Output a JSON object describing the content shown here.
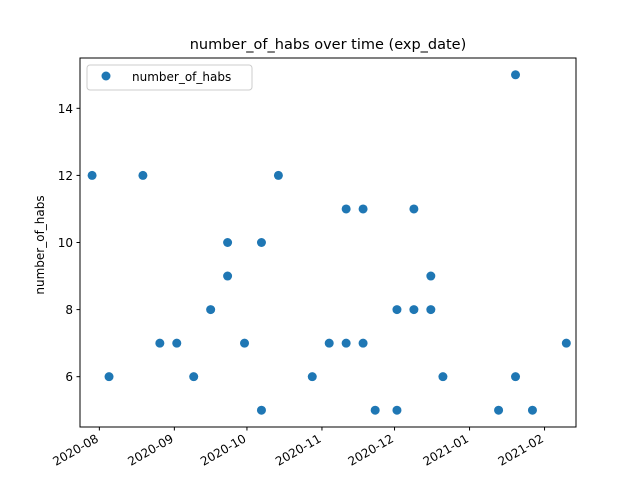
{
  "chart_data": {
    "type": "scatter",
    "title": "number_of_habs over time (exp_date)",
    "xlabel": "",
    "ylabel": "number_of_habs",
    "xlim": [
      "2020-07-24",
      "2021-02-14"
    ],
    "ylim": [
      4.5,
      15.5
    ],
    "x_ticks": [
      "2020-08",
      "2020-09",
      "2020-10",
      "2020-11",
      "2020-12",
      "2021-01",
      "2021-02"
    ],
    "y_ticks": [
      6,
      8,
      10,
      12,
      14
    ],
    "grid": false,
    "legend": {
      "position": "top-left",
      "entries": [
        "number_of_habs"
      ]
    },
    "color": "#1f77b4",
    "series": [
      {
        "name": "number_of_habs",
        "points": [
          {
            "x": "2020-07-29",
            "y": 12
          },
          {
            "x": "2020-08-05",
            "y": 6
          },
          {
            "x": "2020-08-19",
            "y": 12
          },
          {
            "x": "2020-08-26",
            "y": 7
          },
          {
            "x": "2020-09-02",
            "y": 7
          },
          {
            "x": "2020-09-09",
            "y": 6
          },
          {
            "x": "2020-09-16",
            "y": 8
          },
          {
            "x": "2020-09-23",
            "y": 10
          },
          {
            "x": "2020-09-23",
            "y": 9
          },
          {
            "x": "2020-09-30",
            "y": 7
          },
          {
            "x": "2020-10-07",
            "y": 10
          },
          {
            "x": "2020-10-07",
            "y": 5
          },
          {
            "x": "2020-10-14",
            "y": 12
          },
          {
            "x": "2020-10-28",
            "y": 6
          },
          {
            "x": "2020-11-04",
            "y": 7
          },
          {
            "x": "2020-11-11",
            "y": 11
          },
          {
            "x": "2020-11-11",
            "y": 7
          },
          {
            "x": "2020-11-18",
            "y": 11
          },
          {
            "x": "2020-11-18",
            "y": 7
          },
          {
            "x": "2020-11-23",
            "y": 5
          },
          {
            "x": "2020-12-02",
            "y": 8
          },
          {
            "x": "2020-12-02",
            "y": 5
          },
          {
            "x": "2020-12-09",
            "y": 11
          },
          {
            "x": "2020-12-09",
            "y": 8
          },
          {
            "x": "2020-12-16",
            "y": 9
          },
          {
            "x": "2020-12-16",
            "y": 8
          },
          {
            "x": "2020-12-21",
            "y": 6
          },
          {
            "x": "2021-01-13",
            "y": 5
          },
          {
            "x": "2021-01-20",
            "y": 15
          },
          {
            "x": "2021-01-20",
            "y": 6
          },
          {
            "x": "2021-01-27",
            "y": 5
          },
          {
            "x": "2021-02-10",
            "y": 7
          }
        ]
      }
    ]
  }
}
